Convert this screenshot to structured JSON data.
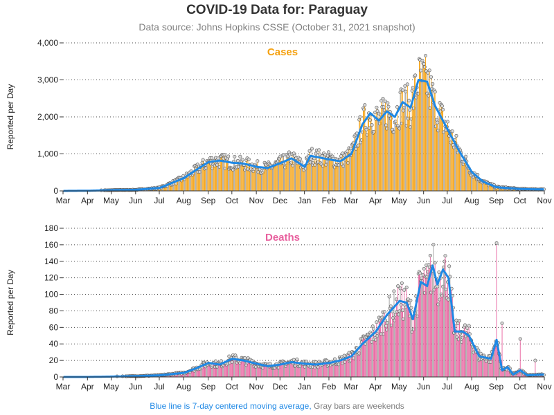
{
  "title": "COVID-19 Data for: Paraguay",
  "subtitle": "Data source: Johns Hopkins CSSE (October 31, 2021 snapshot)",
  "footer": {
    "blue_text": "Blue line is 7-day centered moving average,",
    "gray_text": "Gray bars are weekends"
  },
  "colors": {
    "cases": "#f5a10f",
    "deaths": "#e8609e",
    "moving_average": "#1e88e5",
    "weekend": "#9e9e9e"
  },
  "chart_data": [
    {
      "type": "bar",
      "title": "Cases",
      "ylabel": "Reported per Day",
      "ylim": [
        0,
        4000
      ],
      "y_ticks": [
        "0",
        "1,000",
        "2,000",
        "3,000",
        "4,000"
      ],
      "y_tick_values": [
        0,
        1000,
        2000,
        3000,
        4000
      ],
      "x_tick_labels": [
        "Mar",
        "Apr",
        "May",
        "Jun",
        "Jul",
        "Aug",
        "Sep",
        "Oct",
        "Nov",
        "Dec",
        "Jan",
        "Feb",
        "Mar",
        "Apr",
        "May",
        "Jun",
        "Jul",
        "Aug",
        "Sep",
        "Oct",
        "Nov"
      ],
      "grid": "horizontal dotted",
      "moving_average_keypoints": [
        [
          "2020-03-01",
          0
        ],
        [
          "2020-04-01",
          5
        ],
        [
          "2020-05-01",
          20
        ],
        [
          "2020-06-01",
          30
        ],
        [
          "2020-07-01",
          80
        ],
        [
          "2020-07-15",
          200
        ],
        [
          "2020-08-01",
          350
        ],
        [
          "2020-08-15",
          550
        ],
        [
          "2020-09-01",
          780
        ],
        [
          "2020-09-15",
          820
        ],
        [
          "2020-10-01",
          760
        ],
        [
          "2020-10-15",
          740
        ],
        [
          "2020-11-01",
          650
        ],
        [
          "2020-11-15",
          620
        ],
        [
          "2020-12-01",
          750
        ],
        [
          "2020-12-15",
          880
        ],
        [
          "2021-01-01",
          650
        ],
        [
          "2021-01-08",
          950
        ],
        [
          "2021-01-15",
          920
        ],
        [
          "2021-02-01",
          850
        ],
        [
          "2021-02-15",
          800
        ],
        [
          "2021-03-01",
          1000
        ],
        [
          "2021-03-15",
          1800
        ],
        [
          "2021-03-25",
          2100
        ],
        [
          "2021-04-05",
          1900
        ],
        [
          "2021-04-15",
          2150
        ],
        [
          "2021-04-25",
          2000
        ],
        [
          "2021-05-05",
          2400
        ],
        [
          "2021-05-15",
          2250
        ],
        [
          "2021-05-25",
          3000
        ],
        [
          "2021-06-05",
          2950
        ],
        [
          "2021-06-15",
          2300
        ],
        [
          "2021-06-25",
          1900
        ],
        [
          "2021-07-05",
          1500
        ],
        [
          "2021-07-15",
          1100
        ],
        [
          "2021-08-01",
          500
        ],
        [
          "2021-08-15",
          250
        ],
        [
          "2021-09-01",
          100
        ],
        [
          "2021-10-01",
          50
        ],
        [
          "2021-10-31",
          40
        ]
      ]
    },
    {
      "type": "bar",
      "title": "Deaths",
      "ylabel": "Reported per Day",
      "ylim": [
        0,
        180
      ],
      "y_ticks": [
        "0",
        "20",
        "40",
        "60",
        "80",
        "100",
        "120",
        "140",
        "160",
        "180"
      ],
      "y_tick_values": [
        0,
        20,
        40,
        60,
        80,
        100,
        120,
        140,
        160,
        180
      ],
      "x_tick_labels": [
        "Mar",
        "Apr",
        "May",
        "Jun",
        "Jul",
        "Aug",
        "Sep",
        "Oct",
        "Nov",
        "Dec",
        "Jan",
        "Feb",
        "Mar",
        "Apr",
        "May",
        "Jun",
        "Jul",
        "Aug",
        "Sep",
        "Oct",
        "Nov"
      ],
      "grid": "horizontal dotted",
      "moving_average_keypoints": [
        [
          "2020-03-01",
          0
        ],
        [
          "2020-04-01",
          0
        ],
        [
          "2020-06-01",
          1
        ],
        [
          "2020-07-01",
          2
        ],
        [
          "2020-08-01",
          5
        ],
        [
          "2020-08-15",
          10
        ],
        [
          "2020-09-01",
          17
        ],
        [
          "2020-09-15",
          15
        ],
        [
          "2020-10-01",
          22
        ],
        [
          "2020-10-15",
          20
        ],
        [
          "2020-11-01",
          16
        ],
        [
          "2020-11-15",
          13
        ],
        [
          "2020-12-01",
          15
        ],
        [
          "2020-12-15",
          18
        ],
        [
          "2021-01-01",
          16
        ],
        [
          "2021-01-15",
          15
        ],
        [
          "2021-02-01",
          17
        ],
        [
          "2021-02-15",
          20
        ],
        [
          "2021-03-01",
          25
        ],
        [
          "2021-03-15",
          40
        ],
        [
          "2021-04-01",
          55
        ],
        [
          "2021-04-15",
          75
        ],
        [
          "2021-05-01",
          92
        ],
        [
          "2021-05-10",
          90
        ],
        [
          "2021-05-18",
          70
        ],
        [
          "2021-05-28",
          115
        ],
        [
          "2021-06-05",
          110
        ],
        [
          "2021-06-12",
          135
        ],
        [
          "2021-06-18",
          112
        ],
        [
          "2021-06-25",
          130
        ],
        [
          "2021-07-02",
          120
        ],
        [
          "2021-07-10",
          55
        ],
        [
          "2021-07-20",
          55
        ],
        [
          "2021-07-28",
          50
        ],
        [
          "2021-08-10",
          25
        ],
        [
          "2021-08-25",
          22
        ],
        [
          "2021-09-01",
          45
        ],
        [
          "2021-09-08",
          8
        ],
        [
          "2021-09-15",
          12
        ],
        [
          "2021-09-22",
          3
        ],
        [
          "2021-10-01",
          8
        ],
        [
          "2021-10-10",
          2
        ],
        [
          "2021-10-31",
          3
        ]
      ],
      "notable_daily_values": [
        [
          "2021-09-01",
          162
        ],
        [
          "2021-09-08",
          65
        ],
        [
          "2021-10-01",
          46
        ],
        [
          "2021-10-20",
          20
        ]
      ]
    }
  ]
}
